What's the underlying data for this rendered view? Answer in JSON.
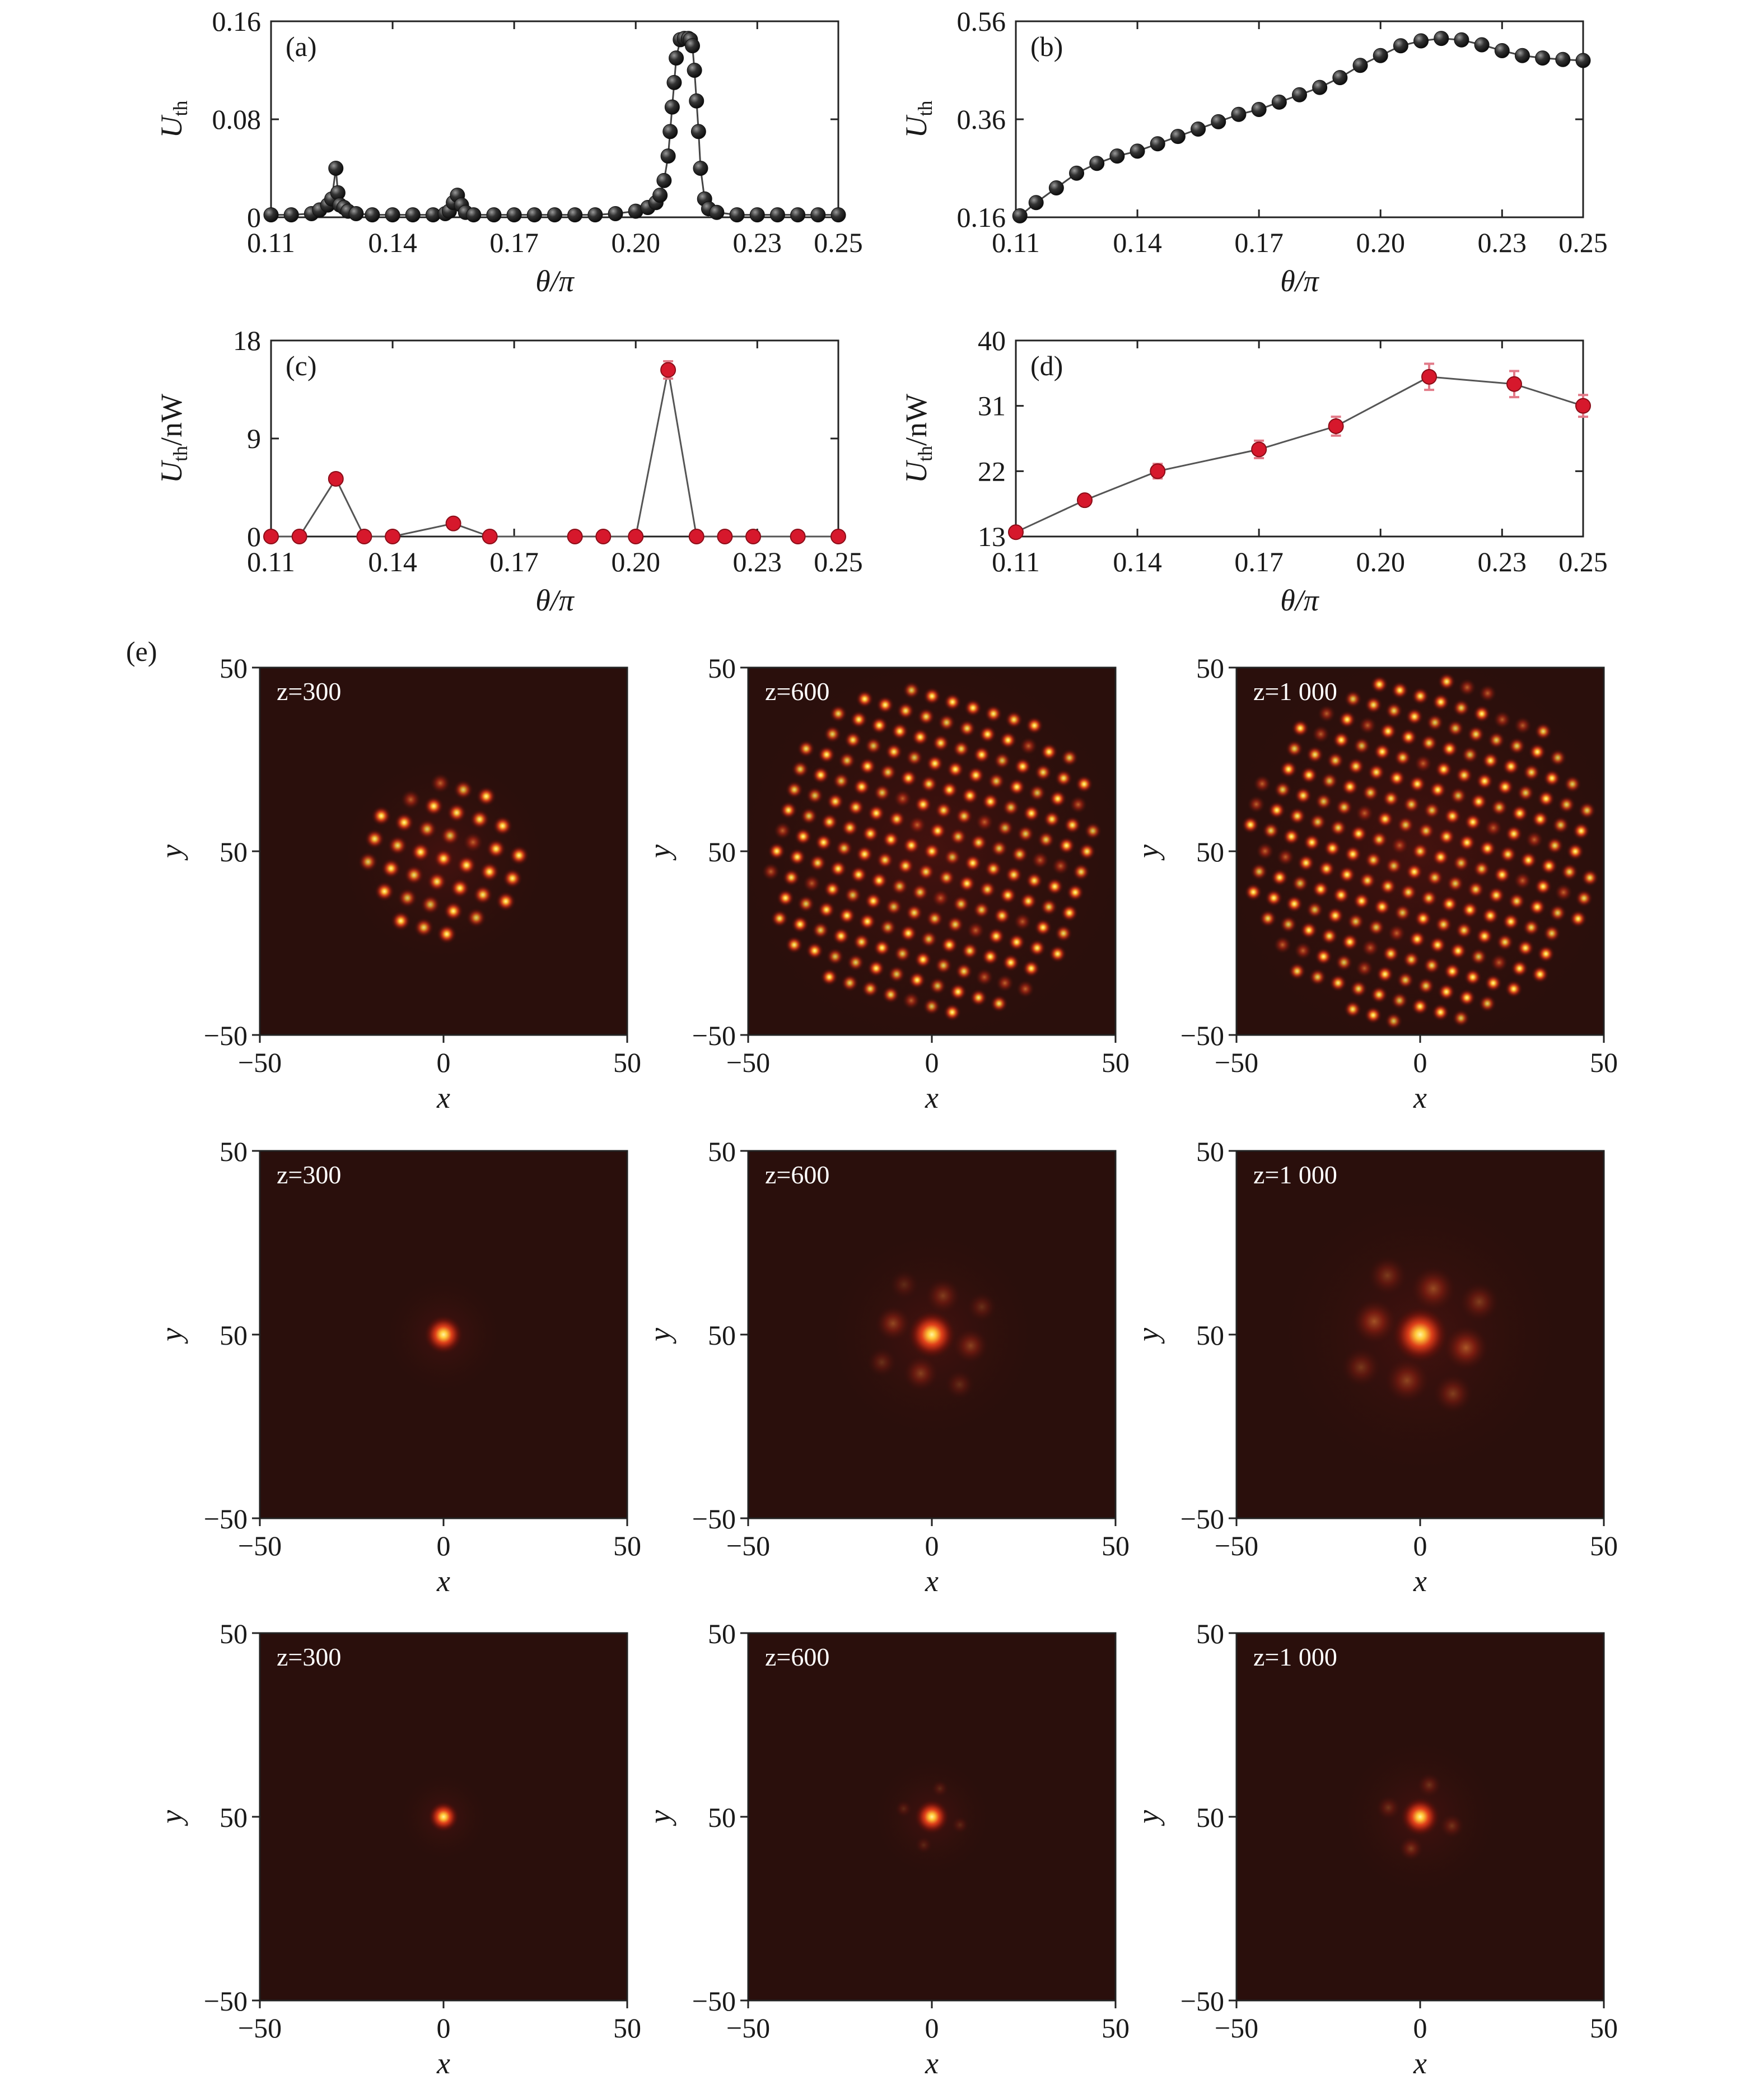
{
  "colors": {
    "series_dark": "#1b1b1b",
    "series_red": "#d6182c",
    "errorbar": "#e27a88",
    "heatmap_bg": "#2a0f0c",
    "heatmap_glow": "#c42a14",
    "heatmap_hot": "#ffe96e"
  },
  "chart_data": [
    {
      "type": "line",
      "panel": "(a)",
      "xlabel": "θ/π",
      "ylabel": "U",
      "ylabel_sub": "th",
      "xlim": [
        0.11,
        0.25
      ],
      "ylim": [
        0,
        0.16
      ],
      "xticks": [
        "0.11",
        "0.14",
        "0.17",
        "0.20",
        "0.23",
        "0.25"
      ],
      "yticks": [
        "0",
        "0.08",
        "0.16"
      ],
      "series": [
        {
          "x": [
            0.11,
            0.115,
            0.12,
            0.122,
            0.124,
            0.125,
            0.126,
            0.1265,
            0.127,
            0.128,
            0.129,
            0.131,
            0.135,
            0.14,
            0.145,
            0.15,
            0.153,
            0.154,
            0.155,
            0.156,
            0.157,
            0.158,
            0.16,
            0.165,
            0.17,
            0.175,
            0.18,
            0.185,
            0.19,
            0.195,
            0.2,
            0.203,
            0.205,
            0.206,
            0.207,
            0.208,
            0.2085,
            0.209,
            0.2095,
            0.21,
            0.211,
            0.212,
            0.213,
            0.2135,
            0.214,
            0.2145,
            0.215,
            0.2155,
            0.216,
            0.217,
            0.218,
            0.22,
            0.225,
            0.23,
            0.235,
            0.24,
            0.245,
            0.25
          ],
          "values": [
            0.002,
            0.002,
            0.003,
            0.006,
            0.01,
            0.015,
            0.04,
            0.02,
            0.01,
            0.008,
            0.005,
            0.003,
            0.002,
            0.002,
            0.002,
            0.002,
            0.003,
            0.005,
            0.012,
            0.018,
            0.01,
            0.004,
            0.002,
            0.002,
            0.002,
            0.002,
            0.002,
            0.002,
            0.002,
            0.003,
            0.005,
            0.008,
            0.012,
            0.018,
            0.03,
            0.05,
            0.07,
            0.09,
            0.11,
            0.13,
            0.145,
            0.146,
            0.146,
            0.145,
            0.14,
            0.12,
            0.095,
            0.07,
            0.04,
            0.015,
            0.007,
            0.004,
            0.002,
            0.002,
            0.002,
            0.002,
            0.002,
            0.002
          ]
        }
      ]
    },
    {
      "type": "line",
      "panel": "(b)",
      "xlabel": "θ/π",
      "ylabel": "U",
      "ylabel_sub": "th",
      "xlim": [
        0.11,
        0.25
      ],
      "ylim": [
        0.16,
        0.56
      ],
      "xticks": [
        "0.11",
        "0.14",
        "0.17",
        "0.20",
        "0.23",
        "0.25"
      ],
      "yticks": [
        "0.16",
        "0.36",
        "0.56"
      ],
      "series": [
        {
          "x": [
            0.111,
            0.115,
            0.12,
            0.125,
            0.13,
            0.135,
            0.14,
            0.145,
            0.15,
            0.155,
            0.16,
            0.165,
            0.17,
            0.175,
            0.18,
            0.185,
            0.19,
            0.195,
            0.2,
            0.205,
            0.21,
            0.215,
            0.22,
            0.225,
            0.23,
            0.235,
            0.24,
            0.245,
            0.25
          ],
          "values": [
            0.163,
            0.19,
            0.22,
            0.25,
            0.27,
            0.285,
            0.295,
            0.31,
            0.325,
            0.34,
            0.355,
            0.37,
            0.38,
            0.395,
            0.41,
            0.425,
            0.445,
            0.47,
            0.49,
            0.51,
            0.52,
            0.525,
            0.522,
            0.512,
            0.5,
            0.49,
            0.485,
            0.482,
            0.48
          ]
        }
      ]
    },
    {
      "type": "line",
      "panel": "(c)",
      "xlabel": "θ/π",
      "ylabel": "U",
      "ylabel_sub": "th",
      "ylabel_suffix": "/nW",
      "xlim": [
        0.11,
        0.25
      ],
      "ylim": [
        0,
        18
      ],
      "xticks": [
        "0.11",
        "0.14",
        "0.17",
        "0.20",
        "0.23",
        "0.25"
      ],
      "yticks": [
        "0",
        "9",
        "18"
      ],
      "series": [
        {
          "x": [
            0.11,
            0.117,
            0.126,
            0.133,
            0.14,
            0.155,
            0.164,
            0.185,
            0.192,
            0.2,
            0.208,
            0.215,
            0.222,
            0.229,
            0.24,
            0.25
          ],
          "values": [
            0,
            0,
            5.3,
            0,
            0,
            1.2,
            0,
            0,
            0,
            0,
            15.3,
            0,
            0,
            0,
            0,
            0
          ],
          "err": [
            0,
            0,
            0.5,
            0,
            0,
            0.3,
            0,
            0,
            0,
            0,
            0.8,
            0,
            0,
            0,
            0,
            0
          ]
        }
      ]
    },
    {
      "type": "line",
      "panel": "(d)",
      "xlabel": "θ/π",
      "ylabel": "U",
      "ylabel_sub": "th",
      "ylabel_suffix": "/nW",
      "xlim": [
        0.11,
        0.25
      ],
      "ylim": [
        13,
        40
      ],
      "xticks": [
        "0.11",
        "0.14",
        "0.17",
        "0.20",
        "0.23",
        "0.25"
      ],
      "yticks": [
        "13",
        "22",
        "31",
        "40"
      ],
      "series": [
        {
          "x": [
            0.11,
            0.127,
            0.145,
            0.17,
            0.189,
            0.212,
            0.233,
            0.25
          ],
          "values": [
            13.6,
            18,
            22,
            25,
            28.2,
            35,
            34,
            31
          ],
          "err": [
            0.5,
            0.6,
            1.0,
            1.2,
            1.3,
            1.8,
            1.8,
            1.5
          ]
        }
      ]
    },
    {
      "type": "heatmap",
      "panel": "(e)",
      "xlabel": "x",
      "ylabel": "y",
      "xticks": [
        "−50",
        "0",
        "50"
      ],
      "yticks": [
        "50",
        "50",
        "−50"
      ],
      "rows": [
        [
          {
            "z_label": "z=300",
            "pattern": "lattice",
            "radius": 0.42,
            "spacing": 0.065,
            "rotation": 16,
            "offset_y": 0.02
          },
          {
            "z_label": "z=600",
            "pattern": "lattice",
            "radius": 0.92,
            "spacing": 0.058,
            "rotation": 16,
            "offset_y": 0.0
          },
          {
            "z_label": "z=1 000",
            "pattern": "lattice",
            "radius": 0.95,
            "spacing": 0.058,
            "rotation": 16,
            "offset_y": 0.0
          }
        ],
        [
          {
            "z_label": "z=300",
            "pattern": "cluster",
            "radius": 0.14,
            "spacing": 0.09,
            "rotation": 16,
            "offset_y": 0.0
          },
          {
            "z_label": "z=600",
            "pattern": "cluster",
            "radius": 0.34,
            "spacing": 0.11,
            "rotation": 16,
            "offset_y": 0.0
          },
          {
            "z_label": "z=1 000",
            "pattern": "cluster",
            "radius": 0.5,
            "spacing": 0.13,
            "rotation": 16,
            "offset_y": 0.0
          }
        ],
        [
          {
            "z_label": "z=300",
            "pattern": "point",
            "radius": 0.1,
            "spacing": 0.07,
            "rotation": 16,
            "offset_y": 0.0
          },
          {
            "z_label": "z=600",
            "pattern": "point",
            "radius": 0.16,
            "spacing": 0.08,
            "rotation": 16,
            "offset_y": 0.0
          },
          {
            "z_label": "z=1 000",
            "pattern": "point",
            "radius": 0.24,
            "spacing": 0.09,
            "rotation": 16,
            "offset_y": 0.0
          }
        ]
      ]
    }
  ]
}
